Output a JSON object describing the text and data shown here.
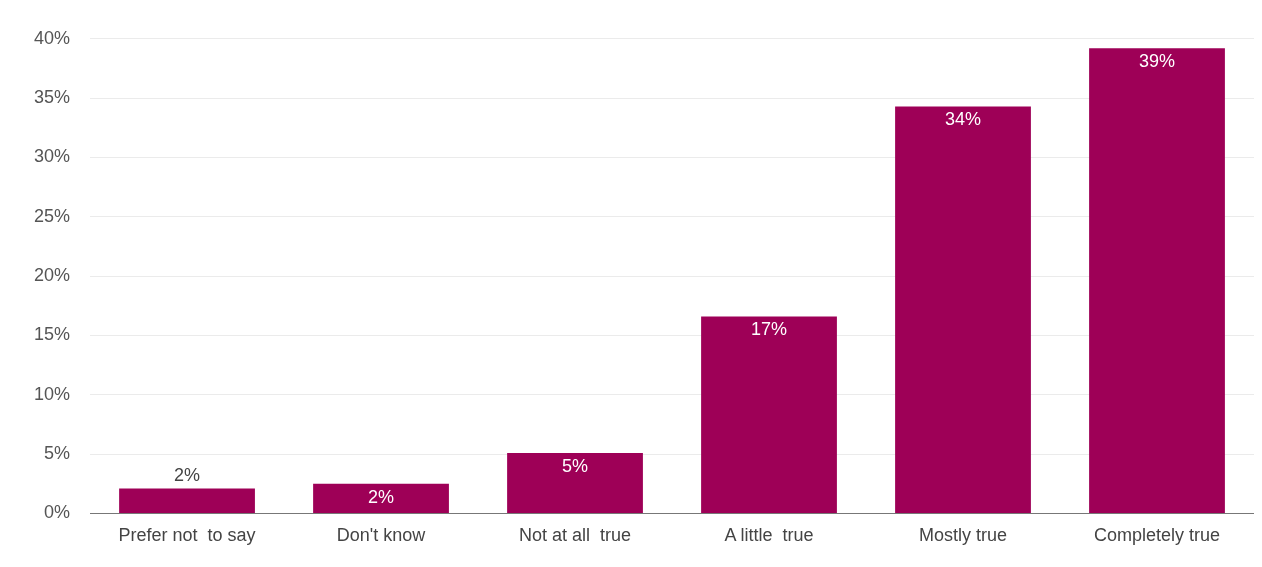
{
  "chart_data": {
    "type": "bar",
    "categories": [
      "Prefer not  to say",
      "Don't know",
      "Not at all  true",
      "A little  true",
      "Mostly true",
      "Completely true"
    ],
    "values": [
      2.1,
      2.5,
      5.1,
      16.6,
      34.3,
      39.2
    ],
    "value_labels": [
      "2%",
      "2%",
      "5%",
      "17%",
      "34%",
      "39%"
    ],
    "color": "#9e0057",
    "ylim": [
      0,
      40
    ],
    "yticks": [
      {
        "value": 0,
        "label": "0%"
      },
      {
        "value": 5,
        "label": "5%"
      },
      {
        "value": 10,
        "label": "10%"
      },
      {
        "value": 15,
        "label": "15%"
      },
      {
        "value": 20,
        "label": "20%"
      },
      {
        "value": 25,
        "label": "25%"
      },
      {
        "value": 30,
        "label": "30%"
      },
      {
        "value": 35,
        "label": "35%"
      },
      {
        "value": 40,
        "label": "40%"
      }
    ],
    "grid": "y"
  }
}
